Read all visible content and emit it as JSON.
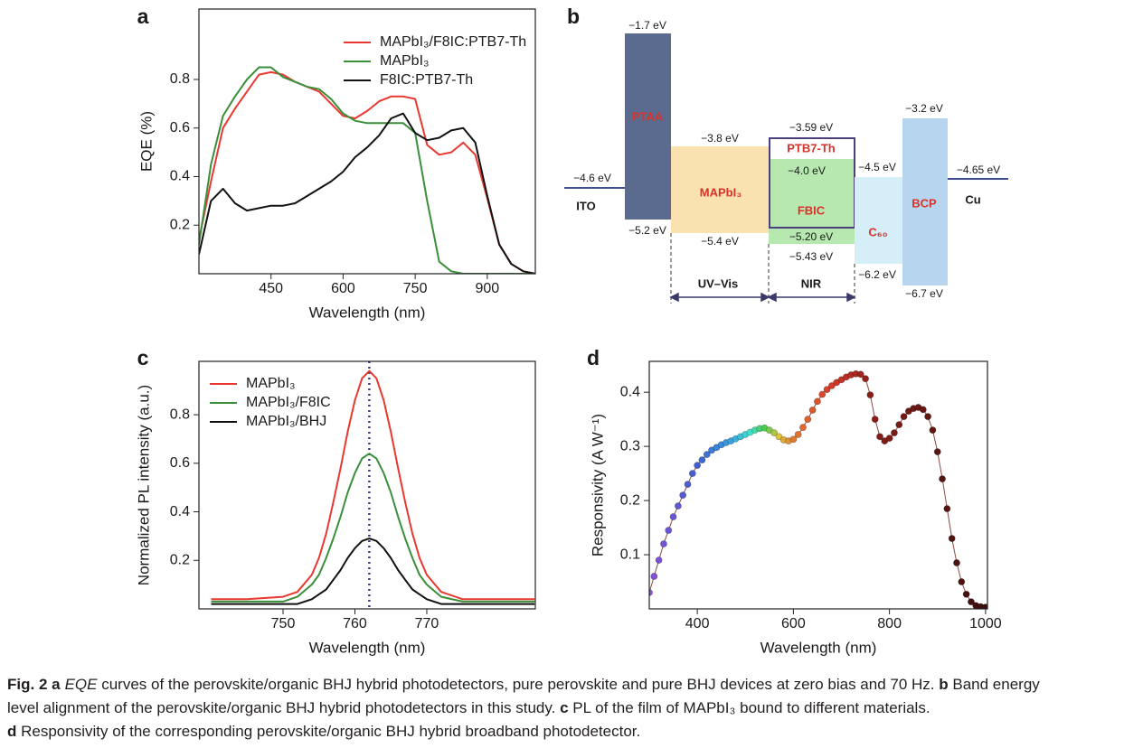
{
  "chart_data": [
    {
      "type": "line",
      "panel_label": "a",
      "x_label": "Wavelength (nm)",
      "y_label": "EQE (%)",
      "x": [
        300,
        325,
        350,
        375,
        400,
        425,
        450,
        475,
        500,
        525,
        550,
        575,
        600,
        625,
        650,
        675,
        700,
        725,
        750,
        775,
        800,
        825,
        850,
        875,
        900,
        925,
        950,
        975,
        1000
      ],
      "series": [
        {
          "name": "MAPbI₃/F8IC:PTB7-Th",
          "color": "#e8382f",
          "values": [
            0.14,
            0.38,
            0.6,
            0.68,
            0.75,
            0.82,
            0.83,
            0.82,
            0.79,
            0.77,
            0.75,
            0.7,
            0.65,
            0.64,
            0.67,
            0.71,
            0.73,
            0.73,
            0.72,
            0.53,
            0.49,
            0.5,
            0.54,
            0.49,
            0.31,
            0.12,
            0.04,
            0.01,
            0.0
          ]
        },
        {
          "name": "MAPbI₃",
          "color": "#3a8f3a",
          "values": [
            0.12,
            0.45,
            0.65,
            0.73,
            0.8,
            0.85,
            0.85,
            0.81,
            0.79,
            0.77,
            0.76,
            0.72,
            0.66,
            0.63,
            0.62,
            0.62,
            0.62,
            0.62,
            0.58,
            0.3,
            0.05,
            0.01,
            0.0,
            0.0,
            0.0,
            0.0,
            0.0,
            0.0,
            0.0
          ]
        },
        {
          "name": "F8IC:PTB7-Th",
          "color": "#111111",
          "values": [
            0.08,
            0.3,
            0.35,
            0.29,
            0.26,
            0.27,
            0.28,
            0.28,
            0.29,
            0.32,
            0.35,
            0.38,
            0.42,
            0.48,
            0.52,
            0.57,
            0.64,
            0.66,
            0.58,
            0.55,
            0.56,
            0.59,
            0.6,
            0.54,
            0.32,
            0.12,
            0.04,
            0.01,
            0.0
          ]
        }
      ],
      "xlim": [
        300,
        1000
      ],
      "ylim": [
        0,
        1.09
      ],
      "xticks": [
        450,
        600,
        750,
        900
      ],
      "yticks": [
        0.2,
        0.4,
        0.6,
        0.8
      ],
      "legend": "upper right"
    },
    {
      "type": "line",
      "panel_label": "c",
      "x_label": "Wavelength (nm)",
      "y_label": "Normalized PL intensity (a.u.)",
      "x": [
        740,
        745,
        750,
        752,
        754,
        755,
        756,
        757,
        758,
        759,
        760,
        761,
        762,
        763,
        764,
        765,
        766,
        767,
        768,
        769,
        770,
        772,
        775,
        780,
        785
      ],
      "series": [
        {
          "name": "MAPbI₃",
          "color": "#e8382f",
          "values": [
            0.04,
            0.04,
            0.05,
            0.07,
            0.14,
            0.21,
            0.31,
            0.44,
            0.58,
            0.73,
            0.86,
            0.95,
            0.98,
            0.95,
            0.86,
            0.73,
            0.58,
            0.44,
            0.31,
            0.21,
            0.14,
            0.07,
            0.04,
            0.04,
            0.04
          ]
        },
        {
          "name": "MAPbI₃/F8IC",
          "color": "#3a8f3a",
          "values": [
            0.03,
            0.03,
            0.03,
            0.05,
            0.1,
            0.14,
            0.21,
            0.29,
            0.38,
            0.48,
            0.56,
            0.62,
            0.64,
            0.62,
            0.56,
            0.48,
            0.38,
            0.29,
            0.21,
            0.14,
            0.1,
            0.05,
            0.03,
            0.03,
            0.03
          ]
        },
        {
          "name": "MAPbI₃/BHJ",
          "color": "#111111",
          "values": [
            0.02,
            0.02,
            0.02,
            0.02,
            0.04,
            0.06,
            0.08,
            0.12,
            0.16,
            0.21,
            0.25,
            0.28,
            0.29,
            0.28,
            0.25,
            0.21,
            0.16,
            0.12,
            0.08,
            0.06,
            0.04,
            0.02,
            0.02,
            0.02,
            0.02
          ]
        }
      ],
      "vline": 762,
      "vline_color": "#3a3a8a",
      "xlim": [
        738.3,
        785.1
      ],
      "ylim": [
        0,
        1.02
      ],
      "xticks": [
        750,
        760,
        770
      ],
      "yticks": [
        0.2,
        0.4,
        0.6,
        0.8
      ],
      "legend": "upper left"
    },
    {
      "type": "scatter",
      "panel_label": "d",
      "x_label": "Wavelength (nm)",
      "y_label": "Responsivity (A W⁻¹)",
      "x": [
        300,
        310,
        320,
        330,
        340,
        350,
        360,
        370,
        380,
        390,
        400,
        410,
        420,
        430,
        440,
        450,
        460,
        470,
        480,
        490,
        500,
        510,
        520,
        530,
        540,
        550,
        560,
        570,
        580,
        590,
        600,
        610,
        620,
        630,
        640,
        650,
        660,
        670,
        680,
        690,
        700,
        710,
        720,
        730,
        740,
        750,
        760,
        770,
        780,
        790,
        800,
        810,
        820,
        830,
        840,
        850,
        860,
        870,
        880,
        890,
        900,
        910,
        920,
        930,
        940,
        950,
        960,
        970,
        980,
        990,
        1000
      ],
      "values": [
        0.03,
        0.06,
        0.09,
        0.12,
        0.145,
        0.17,
        0.19,
        0.21,
        0.23,
        0.25,
        0.265,
        0.275,
        0.285,
        0.293,
        0.298,
        0.303,
        0.307,
        0.31,
        0.314,
        0.318,
        0.322,
        0.326,
        0.33,
        0.333,
        0.334,
        0.33,
        0.325,
        0.318,
        0.312,
        0.31,
        0.313,
        0.322,
        0.335,
        0.35,
        0.367,
        0.383,
        0.396,
        0.405,
        0.412,
        0.418,
        0.423,
        0.428,
        0.432,
        0.434,
        0.433,
        0.425,
        0.395,
        0.35,
        0.318,
        0.31,
        0.315,
        0.325,
        0.34,
        0.355,
        0.365,
        0.37,
        0.372,
        0.368,
        0.355,
        0.33,
        0.29,
        0.24,
        0.185,
        0.13,
        0.085,
        0.05,
        0.027,
        0.013,
        0.006,
        0.004,
        0.003
      ],
      "line_color": "#8a4a40",
      "colorscale": [
        {
          "value": 300,
          "color": "#8a4fd6"
        },
        {
          "value": 400,
          "color": "#3f5fcf"
        },
        {
          "value": 470,
          "color": "#3aa0e0"
        },
        {
          "value": 510,
          "color": "#40e0d0"
        },
        {
          "value": 540,
          "color": "#4ccd50"
        },
        {
          "value": 570,
          "color": "#e0c040"
        },
        {
          "value": 600,
          "color": "#e07a30"
        },
        {
          "value": 680,
          "color": "#d63a2a"
        },
        {
          "value": 760,
          "color": "#8a1f1a"
        },
        {
          "value": 1000,
          "color": "#3a0e0c"
        }
      ],
      "xlim": [
        300,
        1004
      ],
      "ylim": [
        0,
        0.457
      ],
      "xticks": [
        400,
        600,
        800,
        1000
      ],
      "yticks": [
        0.1,
        0.2,
        0.3,
        0.4
      ]
    }
  ],
  "band_diagram": {
    "panel_label": "b",
    "electrodes": [
      {
        "name": "ITO",
        "level": "−4.6 eV"
      },
      {
        "name": "Cu",
        "level": "−4.65 eV"
      }
    ],
    "layers": [
      {
        "name": "PTAA",
        "top": "−1.7 eV",
        "bottom": "−5.2 eV"
      },
      {
        "name": "MAPbI₃",
        "top": "−3.8 eV",
        "bottom": "−5.4 eV"
      },
      {
        "name": "PTB7-Th",
        "top": "−3.59 eV",
        "bottom": "−5.20 eV"
      },
      {
        "name": "FBIC",
        "top": "−4.0 eV",
        "bottom": "−5.43 eV"
      },
      {
        "name": "C₆₀",
        "top": "−4.5 eV",
        "bottom": "−6.2 eV"
      },
      {
        "name": "BCP",
        "top": "−3.2 eV",
        "bottom": "−6.7 eV"
      }
    ],
    "ranges": [
      "UV–Vis",
      "NIR"
    ]
  },
  "caption": [
    [
      {
        "text": "Fig. 2 a",
        "style": "bold"
      },
      {
        "text": "EQE",
        "style": "italic"
      },
      {
        "text": " curves of the perovskite/organic BHJ hybrid photodetectors, pure perovskite and pure BHJ devices at zero bias and 70 Hz. "
      },
      {
        "text": "b",
        "style": "bold"
      },
      {
        "text": " Band energy"
      }
    ],
    [
      {
        "text": "level alignment of the perovskite/organic BHJ hybrid photodetectors in this study. "
      },
      {
        "text": "c",
        "style": "bold"
      },
      {
        "text": " PL of the film of MAPbI₃ bound to different materials."
      }
    ],
    [
      {
        "text": "d",
        "style": "bold"
      },
      {
        "text": " Responsivity of the corresponding perovskite/organic BHJ hybrid broadband photodetector."
      }
    ]
  ]
}
